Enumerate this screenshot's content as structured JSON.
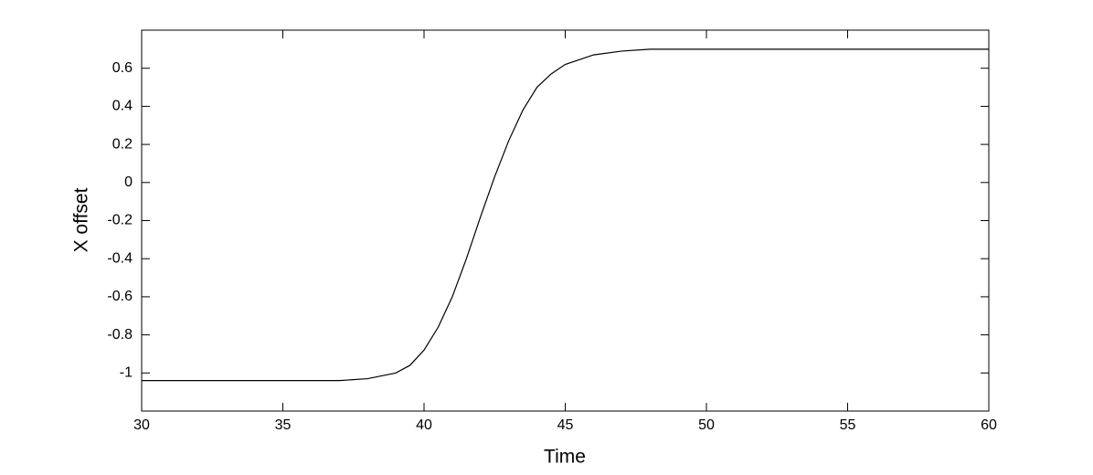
{
  "chart_data": {
    "type": "line",
    "x_label": "Time",
    "y_label": "X offset",
    "x": [
      30,
      37,
      38,
      39,
      39.5,
      40,
      40.5,
      41,
      41.5,
      42,
      42.5,
      43,
      43.5,
      44,
      44.5,
      45,
      46,
      47,
      48,
      60
    ],
    "values": [
      -1.04,
      -1.04,
      -1.03,
      -1.0,
      -0.96,
      -0.88,
      -0.76,
      -0.6,
      -0.4,
      -0.18,
      0.03,
      0.22,
      0.38,
      0.5,
      0.57,
      0.62,
      0.67,
      0.69,
      0.7,
      0.7
    ],
    "color": "#000000",
    "xlim": [
      30,
      60
    ],
    "xticks": [
      30,
      35,
      40,
      45,
      50,
      55,
      60
    ],
    "ylim": [
      -1.2,
      0.8
    ],
    "yticks": [
      -1,
      -0.8,
      -0.6,
      -0.4,
      -0.2,
      0,
      0.2,
      0.4,
      0.6
    ],
    "grid": false
  }
}
